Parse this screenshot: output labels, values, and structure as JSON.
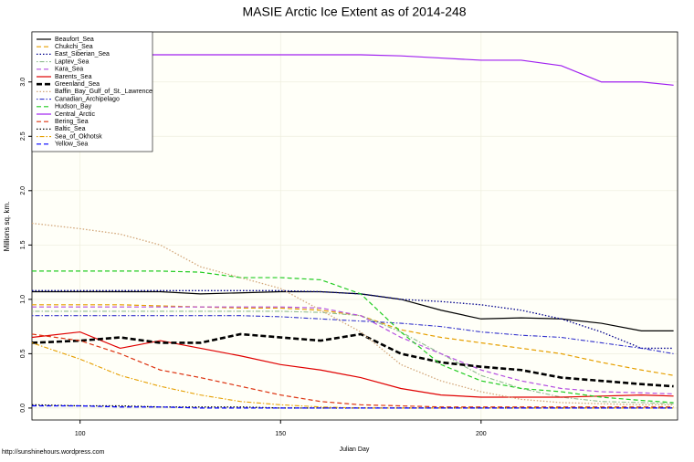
{
  "chart_data": {
    "type": "line",
    "title": "MASIE Arctic Ice Extent as of 2014-248",
    "x_label": "Julian Day",
    "y_label": "Millions sq. km.",
    "footer": "http://sunshinehours.wordpress.com",
    "xlim": [
      88,
      249
    ],
    "ylim": [
      -0.11,
      3.46
    ],
    "xticks": [
      100,
      150,
      200
    ],
    "yticks": [
      {
        "value": 0,
        "label": "0.0"
      },
      0.5,
      {
        "value": 1,
        "label": "1.0"
      },
      1.5,
      {
        "value": 2,
        "label": "2.0"
      },
      2.5,
      {
        "value": 3,
        "label": "3.0"
      }
    ],
    "grid": true,
    "legend": "top-left",
    "x": [
      88,
      100,
      110,
      120,
      130,
      140,
      150,
      160,
      170,
      180,
      190,
      200,
      210,
      220,
      230,
      240,
      248
    ],
    "series": [
      {
        "name": "Beaufort_Sea",
        "color": "#000000",
        "style": "solid",
        "values": [
          1.07,
          1.07,
          1.07,
          1.07,
          1.05,
          1.06,
          1.07,
          1.07,
          1.05,
          1.0,
          0.9,
          0.82,
          0.83,
          0.82,
          0.78,
          0.71,
          0.71
        ]
      },
      {
        "name": "Chukchi_Sea",
        "color": "#e69f00",
        "style": "dashed",
        "values": [
          0.95,
          0.95,
          0.95,
          0.94,
          0.93,
          0.92,
          0.92,
          0.9,
          0.85,
          0.72,
          0.65,
          0.6,
          0.55,
          0.5,
          0.42,
          0.35,
          0.3
        ]
      },
      {
        "name": "East_Siberian_Sea",
        "color": "#00008b",
        "style": "dotted",
        "values": [
          1.08,
          1.08,
          1.08,
          1.08,
          1.08,
          1.08,
          1.08,
          1.07,
          1.05,
          1.0,
          0.98,
          0.95,
          0.9,
          0.82,
          0.7,
          0.55,
          0.55
        ]
      },
      {
        "name": "Laptev_Sea",
        "color": "#8fbc8f",
        "style": "dotdash",
        "values": [
          0.89,
          0.89,
          0.89,
          0.89,
          0.89,
          0.89,
          0.89,
          0.88,
          0.85,
          0.7,
          0.5,
          0.3,
          0.18,
          0.1,
          0.06,
          0.05,
          0.04
        ]
      },
      {
        "name": "Kara_Sea",
        "color": "#b44ee0",
        "style": "dashed",
        "values": [
          0.93,
          0.93,
          0.93,
          0.93,
          0.93,
          0.93,
          0.93,
          0.92,
          0.85,
          0.65,
          0.5,
          0.35,
          0.25,
          0.18,
          0.15,
          0.14,
          0.13
        ]
      },
      {
        "name": "Barents_Sea",
        "color": "#e00000",
        "style": "solid",
        "values": [
          0.65,
          0.7,
          0.55,
          0.62,
          0.55,
          0.48,
          0.4,
          0.35,
          0.28,
          0.18,
          0.12,
          0.1,
          0.1,
          0.1,
          0.11,
          0.12,
          0.11
        ]
      },
      {
        "name": "Greenland_Sea",
        "color": "#000000",
        "style": "thickdash",
        "values": [
          0.6,
          0.62,
          0.65,
          0.6,
          0.6,
          0.68,
          0.65,
          0.62,
          0.68,
          0.5,
          0.42,
          0.38,
          0.35,
          0.28,
          0.25,
          0.22,
          0.2
        ]
      },
      {
        "name": "Baffin_Bay_Gulf_of_St._Lawrence",
        "color": "#d2a679",
        "style": "dotted",
        "values": [
          1.7,
          1.65,
          1.6,
          1.5,
          1.3,
          1.2,
          1.1,
          0.9,
          0.7,
          0.4,
          0.25,
          0.15,
          0.08,
          0.05,
          0.04,
          0.03,
          0.03
        ]
      },
      {
        "name": "Canadian_Archipelago",
        "color": "#3333cc",
        "style": "dotdash",
        "values": [
          0.85,
          0.85,
          0.85,
          0.85,
          0.85,
          0.85,
          0.84,
          0.82,
          0.8,
          0.78,
          0.75,
          0.7,
          0.67,
          0.65,
          0.6,
          0.55,
          0.5
        ]
      },
      {
        "name": "Hudson_Bay",
        "color": "#22cc22",
        "style": "dashed",
        "values": [
          1.26,
          1.26,
          1.26,
          1.26,
          1.25,
          1.2,
          1.2,
          1.18,
          1.05,
          0.7,
          0.4,
          0.25,
          0.18,
          0.15,
          0.1,
          0.07,
          0.05
        ]
      },
      {
        "name": "Central_Arctic",
        "color": "#a020f0",
        "style": "solid",
        "values": [
          3.22,
          3.25,
          3.25,
          3.25,
          3.25,
          3.25,
          3.25,
          3.25,
          3.25,
          3.24,
          3.22,
          3.2,
          3.2,
          3.15,
          3.0,
          3.0,
          2.97
        ]
      },
      {
        "name": "Bering_Sea",
        "color": "#dd3311",
        "style": "dashed",
        "values": [
          0.68,
          0.62,
          0.5,
          0.35,
          0.28,
          0.2,
          0.12,
          0.06,
          0.03,
          0.02,
          0.01,
          0.01,
          0.01,
          0.01,
          0.01,
          0.01,
          0.01
        ]
      },
      {
        "name": "Baltic_Sea",
        "color": "#000000",
        "style": "dotted",
        "values": [
          0.03,
          0.02,
          0.02,
          0.01,
          0.01,
          0.01,
          0,
          0,
          0,
          0,
          0,
          0,
          0,
          0,
          0,
          0,
          0
        ]
      },
      {
        "name": "Sea_of_Okhotsk",
        "color": "#e69f00",
        "style": "dotdash",
        "values": [
          0.6,
          0.45,
          0.3,
          0.2,
          0.12,
          0.06,
          0.03,
          0.01,
          0,
          0,
          0,
          0,
          0,
          0,
          0,
          0,
          0
        ]
      },
      {
        "name": "Yellow_Sea",
        "color": "#0000ff",
        "style": "dashed",
        "values": [
          0.02,
          0.02,
          0.01,
          0.01,
          0,
          0,
          0,
          0,
          0,
          0,
          0,
          0,
          0,
          0,
          0,
          0,
          0
        ]
      }
    ]
  }
}
